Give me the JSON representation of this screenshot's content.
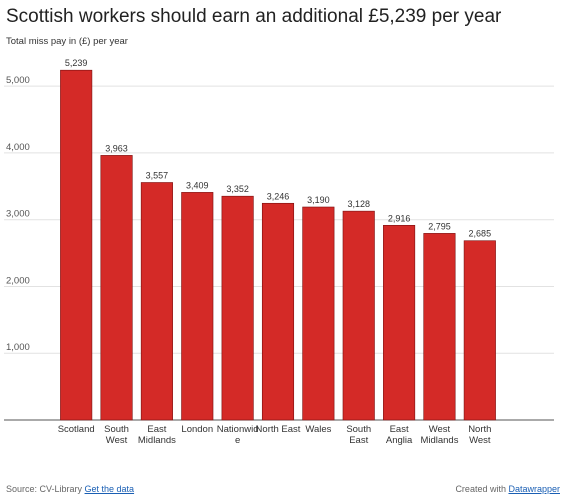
{
  "chart_data": {
    "type": "bar",
    "title": "Scottish workers should earn an additional £5,239 per year",
    "subtitle": "Total miss pay in (£) per year",
    "categories": [
      [
        "Scotland"
      ],
      [
        "South",
        "West"
      ],
      [
        "East",
        "Midlands"
      ],
      [
        "London"
      ],
      [
        "Nationwid",
        "e"
      ],
      [
        "North East"
      ],
      [
        "Wales"
      ],
      [
        "South",
        "East"
      ],
      [
        "East",
        "Anglia"
      ],
      [
        "West",
        "Midlands"
      ],
      [
        "North",
        "West"
      ]
    ],
    "values": [
      5239,
      3963,
      3557,
      3409,
      3352,
      3246,
      3190,
      3128,
      2916,
      2795,
      2685
    ],
    "value_labels": [
      "5,239",
      "3,963",
      "3,557",
      "3,409",
      "3,352",
      "3,246",
      "3,190",
      "3,128",
      "2,916",
      "2,795",
      "2,685"
    ],
    "yticks": [
      1000,
      2000,
      3000,
      4000,
      5000
    ],
    "ytick_labels": [
      "1,000",
      "2,000",
      "3,000",
      "4,000",
      "5,000"
    ],
    "ylim": [
      0,
      5500
    ],
    "grid": true,
    "xlabel": "",
    "ylabel": "",
    "color": "#d42a27"
  },
  "footer": {
    "source_prefix": "Source: CV-Library ",
    "data_link": "Get the data",
    "credit_prefix": "Created with ",
    "credit_link": "Datawrapper"
  }
}
